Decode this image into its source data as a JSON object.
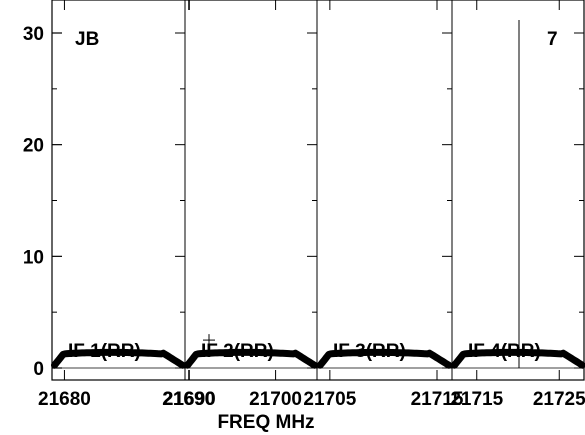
{
  "chart_data": {
    "type": "line",
    "xlabel": "FREQ MHz",
    "ylabel": "",
    "ylim": [
      0,
      32
    ],
    "yticks": [
      "0",
      "10",
      "20",
      "30"
    ],
    "top_left_label": "JB",
    "top_right_label": "7",
    "panels": [
      {
        "name": "IF 1(RR)",
        "xlim": [
          21679.0,
          21689.7
        ],
        "xticks": [
          21680,
          21690
        ],
        "xtick_labels": [
          "21680",
          "21690"
        ],
        "x_start": 21679.2,
        "x_end": 21689.5,
        "plateau": 1.4
      },
      {
        "name": "IF 2(RR)",
        "xlim": [
          21689.5,
          21704.8
        ],
        "xticks": [
          21690,
          21700
        ],
        "xtick_labels": [
          "21690",
          "21700"
        ],
        "x_start": 21689.8,
        "x_end": 21704.5,
        "plateau": 1.4
      },
      {
        "name": "IF 3(RR)",
        "xlim": [
          21703.8,
          21716.4
        ],
        "xticks": [
          21705,
          21715
        ],
        "xtick_labels": [
          "21705",
          "21715"
        ],
        "x_start": 21704.1,
        "x_end": 21716.1,
        "plateau": 1.4
      },
      {
        "name": "IF 4(RR)",
        "xlim": [
          21712.0,
          21728.0
        ],
        "xticks": [
          21715,
          21725
        ],
        "xtick_labels": [
          "21715",
          "21725"
        ],
        "x_start": 21712.3,
        "x_end": 21727.8,
        "plateau": 1.4
      }
    ]
  }
}
